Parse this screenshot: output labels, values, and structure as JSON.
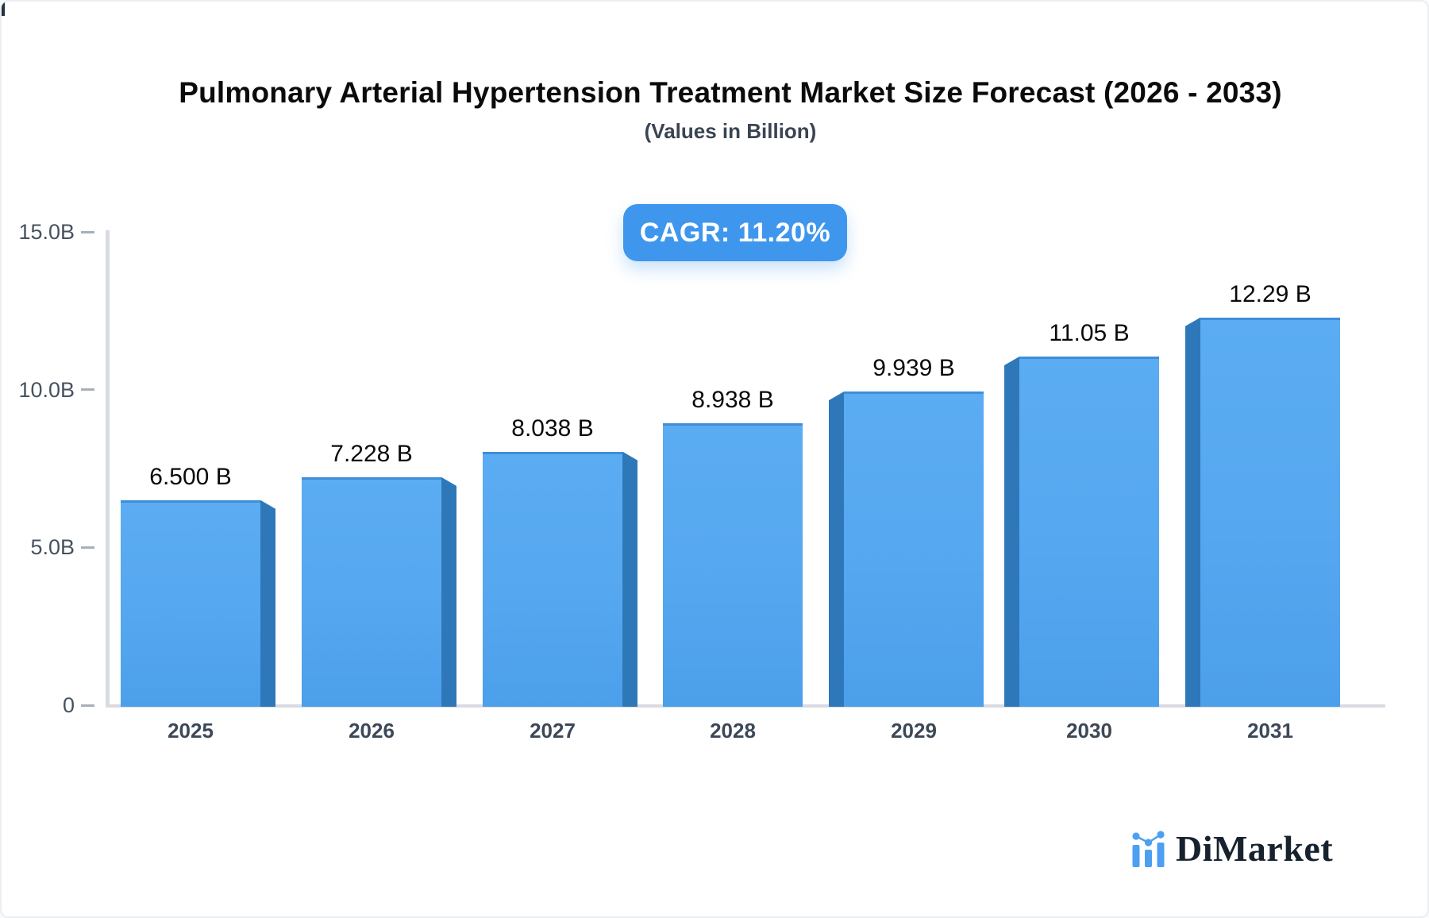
{
  "title": "Pulmonary Arterial Hypertension Treatment Market Size Forecast (2026 - 2033)",
  "subtitle": "(Values in Billion)",
  "badge": {
    "label": "CAGR: 11.20%"
  },
  "logo": {
    "text": "DiMarket"
  },
  "colors": {
    "bar": "#55a7ef",
    "bar_side": "#2e78ba",
    "bar_top_edge": "#3e8ed8",
    "badge_bg": "#3f97ed",
    "axis": "#d8dbe1",
    "tick": "#a9afb9",
    "axis_label": "#46525f",
    "year_label": "#3d4857",
    "value_label": "#0a0a0a",
    "logo_blue": "#4d9ff2",
    "logo_text": "#17222f"
  },
  "chart_data": {
    "type": "bar",
    "title": "Pulmonary Arterial Hypertension Treatment Market Size Forecast (2026 - 2033)",
    "subtitle": "(Values in Billion)",
    "categories": [
      "2025",
      "2026",
      "2027",
      "2028",
      "2029",
      "2030",
      "2031"
    ],
    "values": [
      6.5,
      7.228,
      8.038,
      8.938,
      9.939,
      11.05,
      12.29
    ],
    "value_labels": [
      "6.500 B",
      "7.228 B",
      "8.038 B",
      "8.938 B",
      "9.939 B",
      "11.05 B",
      "12.29 B"
    ],
    "xlabel": "",
    "ylabel": "",
    "ylim": [
      0,
      15
    ],
    "yticks": [
      {
        "value": 0,
        "label": "0"
      },
      {
        "value": 5,
        "label": "5.0B"
      },
      {
        "value": 10,
        "label": "10.0B"
      },
      {
        "value": 15,
        "label": "15.0B"
      }
    ],
    "grid": false,
    "legend": false,
    "annotation": "CAGR: 11.20%",
    "bar_style": "pseudo-3d, side faces angle toward center bar"
  }
}
